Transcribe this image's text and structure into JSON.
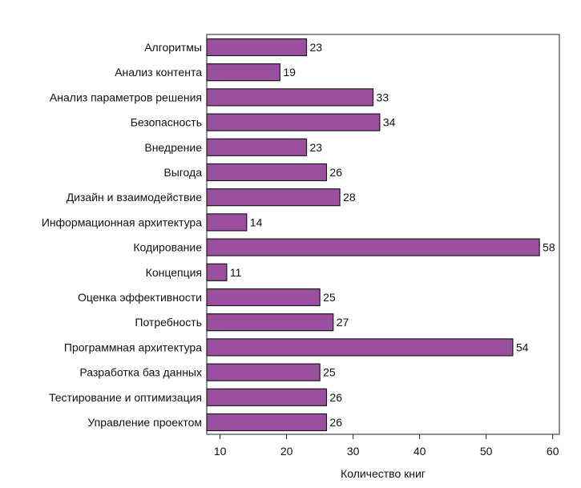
{
  "chart_data": {
    "type": "bar",
    "orientation": "horizontal",
    "categories": [
      "Алгоритмы",
      "Анализ контента",
      "Анализ параметров решения",
      "Безопасность",
      "Внедрение",
      "Выгода",
      "Дизайн и взаимодействие",
      "Информационная архитектура",
      "Кодирование",
      "Концепция",
      "Оценка эффективности",
      "Потребность",
      "Программная архитектура",
      "Разработка баз данных",
      "Тестирование и оптимизация",
      "Управление проектом"
    ],
    "values": [
      23,
      19,
      33,
      34,
      23,
      26,
      28,
      14,
      58,
      11,
      25,
      27,
      54,
      25,
      26,
      26
    ],
    "value_labels": [
      "23",
      "19",
      "33",
      "34",
      "23",
      "26",
      "28",
      "14",
      "58",
      "11",
      "25",
      "27",
      "54",
      "25",
      "26",
      "26"
    ],
    "xlabel": "Количество книг",
    "xlim": [
      8,
      61
    ],
    "xticks": [
      10,
      20,
      30,
      40,
      50,
      60
    ],
    "xtick_labels": [
      "10",
      "20",
      "30",
      "40",
      "50",
      "60"
    ],
    "bar_color": "#9b4f9f",
    "bar_edge_color": "#1a1a1a",
    "grid": false
  }
}
